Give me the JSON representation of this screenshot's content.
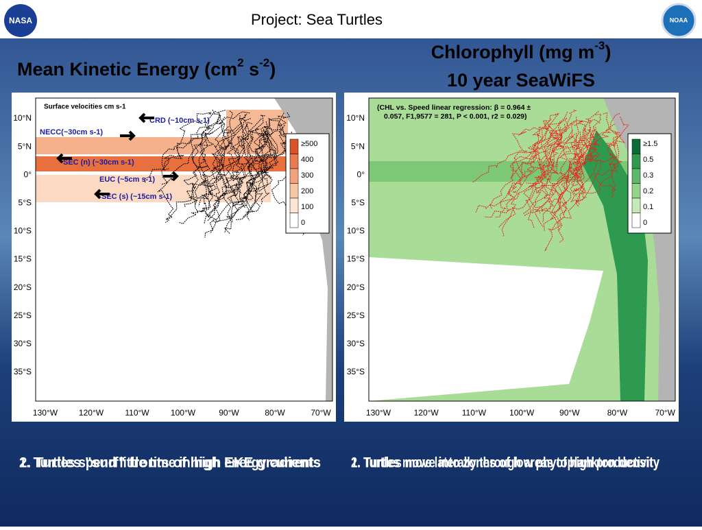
{
  "header": {
    "title": "Project: Sea Turtles"
  },
  "left_panel": {
    "heading": [
      "Mean Kinetic Energy (cm",
      "2",
      " s",
      "-2",
      ")"
    ],
    "map_title": "Surface velocities cm s-1",
    "currents": [
      "CRD (~10cm s-1)",
      "NECC(~30cm s-1)",
      "SEC (n) (~30cm s-1)",
      "EUC (~5cm s-1)",
      "SEC (s) (~15cm s-1)"
    ],
    "legend": [
      "≥500",
      "400",
      "300",
      "200",
      "100",
      "0"
    ],
    "lat_ticks": [
      "10°N",
      "5°N",
      "0°",
      "5°S",
      "10°S",
      "15°S",
      "20°S",
      "25°S",
      "30°S",
      "35°S"
    ],
    "lon_ticks": [
      "130°W",
      "120°W",
      "110°W",
      "100°W",
      "90°W",
      "80°W",
      "70°W"
    ],
    "bullets": [
      "1.  Turtles spend little time in high energy currents",
      "2.  Turtles \"surf\" fronts of high EKE gradients"
    ]
  },
  "right_panel": {
    "heading": [
      "Chlorophyll (mg m",
      "-3",
      ")"
    ],
    "subheading": "10 year SeaWiFS",
    "regression": [
      "(CHL vs. Speed linear regression: β = 0.964 ±",
      "0.057, F1,9577 = 281, P < 0.001, r2 = 0.029)"
    ],
    "legend": [
      "≥1.5",
      "0.5",
      "0.3",
      "0.2",
      "0.1",
      "0"
    ],
    "lat_ticks": [
      "10°N",
      "5°N",
      "0°",
      "5°S",
      "10°S",
      "15°S",
      "20°S",
      "25°S",
      "30°S",
      "35°S"
    ],
    "lon_ticks": [
      "130°W",
      "120°W",
      "110°W",
      "100°W",
      "90°W",
      "80°W",
      "70°W"
    ],
    "bullets": [
      "1.  Turtles move into zones of low phytoplankton density",
      "2.  Turtles move laterally through areas of high productivity"
    ]
  }
}
